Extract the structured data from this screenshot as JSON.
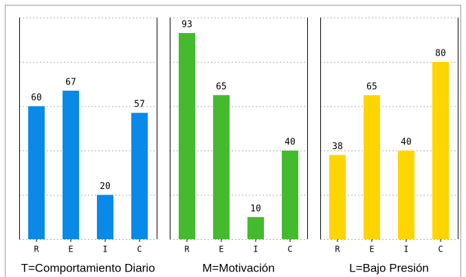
{
  "chart_data": [
    {
      "type": "bar",
      "xlabel": "T=Comportamiento Diario",
      "categories": [
        "R",
        "E",
        "I",
        "C"
      ],
      "values": [
        60,
        67,
        20,
        57
      ],
      "color": "#0a8ae8",
      "ylim": [
        0,
        100
      ],
      "yticks": [
        0,
        20,
        40,
        60,
        80,
        100
      ],
      "grid": true
    },
    {
      "type": "bar",
      "xlabel": "M=Motivación",
      "categories": [
        "R",
        "E",
        "I",
        "C"
      ],
      "values": [
        93,
        65,
        10,
        40
      ],
      "color": "#44bb2e",
      "ylim": [
        0,
        100
      ],
      "yticks": [
        0,
        20,
        40,
        60,
        80,
        100
      ],
      "grid": true
    },
    {
      "type": "bar",
      "xlabel": "L=Bajo Presión",
      "categories": [
        "R",
        "E",
        "I",
        "C"
      ],
      "values": [
        38,
        65,
        40,
        80
      ],
      "color": "#ffd500",
      "ylim": [
        0,
        100
      ],
      "yticks": [
        0,
        20,
        40,
        60,
        80,
        100
      ],
      "grid": true
    }
  ]
}
